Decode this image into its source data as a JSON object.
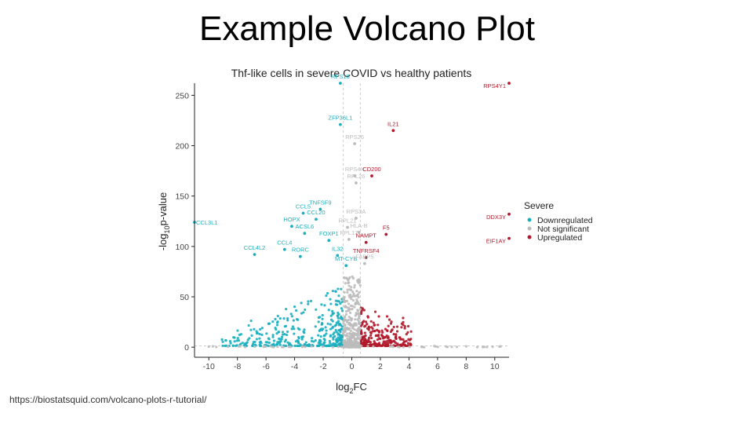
{
  "slide": {
    "title": "Example Volcano Plot",
    "source_url": "https://biostatsquid.com/volcano-plots-r-tutorial/"
  },
  "chart_data": {
    "type": "scatter",
    "title": "Thf-like cells in severe COVID vs healthy patients",
    "xlabel_main": "log",
    "xlabel_sub": "2",
    "xlabel_tail": "FC",
    "ylabel_main": "-log",
    "ylabel_sub": "10",
    "ylabel_tail": "p-value",
    "xlim": [
      -11,
      11
    ],
    "ylim": [
      -10,
      262
    ],
    "xticks": [
      -10,
      -8,
      -6,
      -4,
      -2,
      0,
      2,
      4,
      6,
      8,
      10
    ],
    "yticks": [
      0,
      50,
      100,
      150,
      200,
      250
    ],
    "thresholds": {
      "x": [
        -0.6,
        0.6
      ],
      "y": 1.3
    },
    "legend": {
      "title": "Severe",
      "position": "right",
      "entries": [
        {
          "key": "down",
          "label": "Downregulated",
          "color": "#1AAFBF"
        },
        {
          "key": "ns",
          "label": "Not significant",
          "color": "#BBBBBB"
        },
        {
          "key": "up",
          "label": "Upregulated",
          "color": "#B2182B"
        }
      ]
    },
    "colors": {
      "down": "#1AAFBF",
      "ns": "#BBBBBB",
      "up": "#B2182B"
    },
    "labeled_points": [
      {
        "label": "RPS10",
        "x": -0.8,
        "y": 262,
        "group": "down"
      },
      {
        "label": "RPS4Y1",
        "x": 11,
        "y": 262,
        "group": "up"
      },
      {
        "label": "ZFP36L1",
        "x": -0.8,
        "y": 221,
        "group": "down"
      },
      {
        "label": "IL21",
        "x": 2.9,
        "y": 215,
        "group": "up"
      },
      {
        "label": "RPS26",
        "x": 0.2,
        "y": 202,
        "group": "ns"
      },
      {
        "label": "RPS4X",
        "x": 0.2,
        "y": 170,
        "group": "ns"
      },
      {
        "label": "CD200",
        "x": 1.4,
        "y": 170,
        "group": "up"
      },
      {
        "label": "RPL26",
        "x": 0.3,
        "y": 163,
        "group": "ns"
      },
      {
        "label": "TNFSF9",
        "x": -2.2,
        "y": 137,
        "group": "down"
      },
      {
        "label": "CCL5",
        "x": -3.4,
        "y": 133,
        "group": "down"
      },
      {
        "label": "CCL20",
        "x": -2.5,
        "y": 127,
        "group": "down"
      },
      {
        "label": "RPS3A",
        "x": 0.3,
        "y": 128,
        "group": "ns"
      },
      {
        "label": "CCL3L1",
        "x": -11,
        "y": 124,
        "group": "down"
      },
      {
        "label": "DDX3Y",
        "x": 11,
        "y": 132,
        "group": "up"
      },
      {
        "label": "HOPX",
        "x": -4.2,
        "y": 120,
        "group": "down"
      },
      {
        "label": "RPL21",
        "x": -0.3,
        "y": 119,
        "group": "ns"
      },
      {
        "label": "ACSL6",
        "x": -3.3,
        "y": 113,
        "group": "down"
      },
      {
        "label": "HLA-B",
        "x": 0.5,
        "y": 114,
        "group": "ns"
      },
      {
        "label": "F5",
        "x": 2.4,
        "y": 112,
        "group": "up"
      },
      {
        "label": "FOXP1",
        "x": -1.6,
        "y": 106,
        "group": "down"
      },
      {
        "label": "RPL17",
        "x": -0.2,
        "y": 107,
        "group": "ns"
      },
      {
        "label": "EIF1AY",
        "x": 11,
        "y": 108,
        "group": "up"
      },
      {
        "label": "CCL4",
        "x": -4.7,
        "y": 97,
        "group": "down"
      },
      {
        "label": "NAMPT",
        "x": 1.0,
        "y": 104,
        "group": "up"
      },
      {
        "label": "IL32",
        "x": -1.0,
        "y": 91,
        "group": "down"
      },
      {
        "label": "CCL4L2",
        "x": -6.8,
        "y": 92,
        "group": "down"
      },
      {
        "label": "RORC",
        "x": -3.6,
        "y": 90,
        "group": "down"
      },
      {
        "label": "TNFRSF4",
        "x": 1.0,
        "y": 89,
        "group": "up"
      },
      {
        "label": "MT-CYB",
        "x": -0.4,
        "y": 81,
        "group": "down"
      },
      {
        "label": "FABP5",
        "x": 0.9,
        "y": 83,
        "group": "ns"
      }
    ]
  }
}
